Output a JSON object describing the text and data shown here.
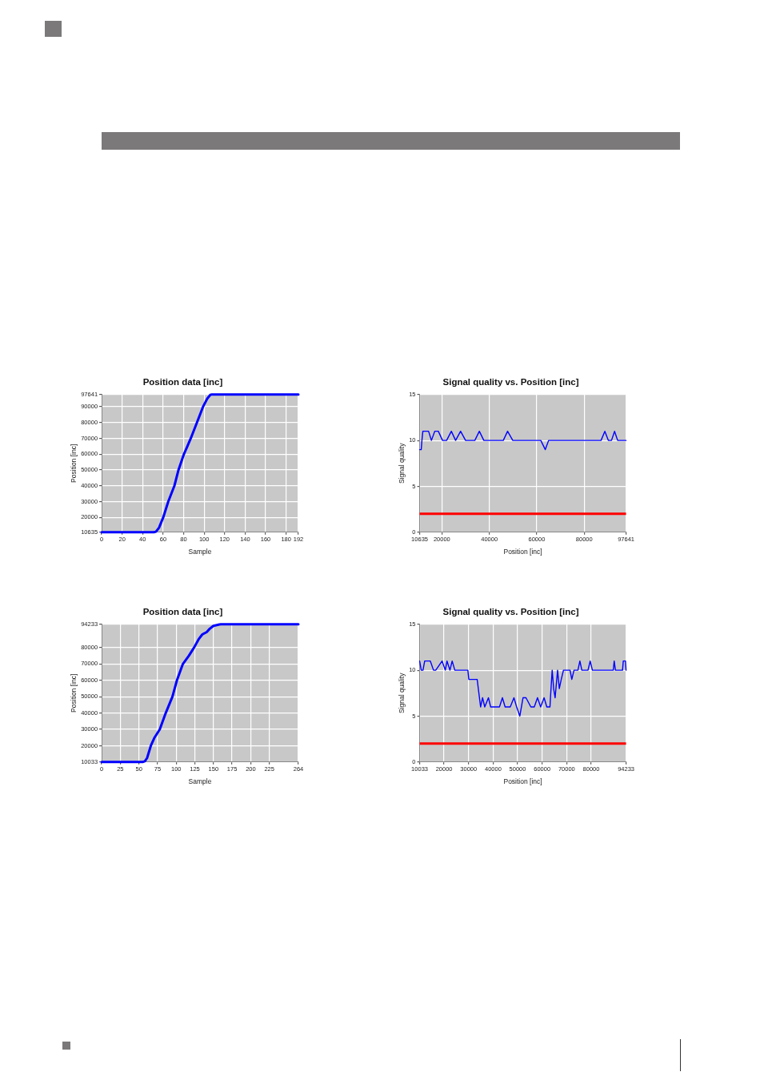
{
  "chart_data": [
    {
      "type": "line",
      "title": "Position data [inc]",
      "xlabel": "Sample",
      "ylabel": "Position [inc]",
      "xlim": [
        0,
        192
      ],
      "xticks": [
        0,
        20,
        40,
        60,
        80,
        100,
        120,
        140,
        160,
        180,
        192
      ],
      "ylim": [
        10635,
        97641
      ],
      "yticks": [
        10635,
        20000,
        30000,
        40000,
        50000,
        60000,
        70000,
        80000,
        90000,
        97641
      ],
      "grid": true,
      "marker": "none",
      "line_style": "solid",
      "x": [
        0,
        51,
        53,
        56,
        60,
        65,
        71,
        75,
        80,
        83,
        87,
        93,
        99,
        103,
        106,
        107,
        192
      ],
      "series": [
        {
          "color": "#0000ff",
          "values": [
            10635,
            10635,
            11000,
            13500,
            19800,
            30000,
            40000,
            50000,
            59500,
            64000,
            70000,
            80000,
            90000,
            95000,
            97400,
            97641,
            97641
          ]
        }
      ]
    },
    {
      "type": "line",
      "title": "Signal quality vs. Position [inc]",
      "xlabel": "Position [inc]",
      "ylabel": "Signal quality",
      "xlim": [
        10635,
        97641
      ],
      "xticks": [
        10635,
        20000,
        40000,
        60000,
        80000,
        97641
      ],
      "ylim": [
        0,
        15
      ],
      "yticks": [
        0,
        5,
        10,
        15
      ],
      "grid": true,
      "marker": "none",
      "line_style": "solid",
      "ref_lines": [
        {
          "axis": "y",
          "value": 2,
          "color": "#ff0000"
        }
      ],
      "x": [
        10635,
        11300,
        11600,
        12000,
        14400,
        15600,
        17000,
        18500,
        20300,
        22000,
        24000,
        25800,
        27900,
        30000,
        33900,
        35800,
        37700,
        45900,
        47700,
        49900,
        61700,
        63600,
        65000,
        87100,
        88700,
        90200,
        91500,
        92800,
        94100,
        97641
      ],
      "series": [
        {
          "color": "#0000ff",
          "values": [
            9,
            9,
            10,
            11,
            11,
            10,
            11,
            11,
            10,
            10,
            11,
            10,
            11,
            10,
            10,
            11,
            10,
            10,
            11,
            10,
            10,
            9,
            10,
            10,
            11,
            10,
            10,
            11,
            10,
            10
          ]
        }
      ]
    },
    {
      "type": "line",
      "title": "Position data [inc]",
      "xlabel": "Sample",
      "ylabel": "Position [inc]",
      "xlim": [
        0,
        264
      ],
      "xticks": [
        0,
        25,
        50,
        75,
        100,
        125,
        150,
        175,
        200,
        225,
        264
      ],
      "ylim": [
        10033,
        94233
      ],
      "yticks": [
        10033,
        20000,
        30000,
        40000,
        50000,
        60000,
        70000,
        80000,
        94233
      ],
      "grid": true,
      "marker": "none",
      "line_style": "solid",
      "x": [
        0,
        55,
        58,
        61,
        66,
        71,
        78,
        86,
        95,
        101,
        109,
        117,
        124,
        130,
        135,
        141,
        145,
        150,
        158,
        160,
        264
      ],
      "series": [
        {
          "color": "#0000ff",
          "values": [
            10033,
            10033,
            10500,
            12500,
            20000,
            25000,
            30000,
            40000,
            50000,
            60000,
            70000,
            75000,
            80000,
            85000,
            88000,
            89500,
            91500,
            93300,
            94100,
            94233,
            94233
          ]
        }
      ]
    },
    {
      "type": "line",
      "title": "Signal quality vs. Position [inc]",
      "xlabel": "Position [inc]",
      "ylabel": "Signal quality",
      "xlim": [
        10033,
        94233
      ],
      "xticks": [
        10033,
        20000,
        30000,
        40000,
        50000,
        60000,
        70000,
        80000,
        94233
      ],
      "ylim": [
        0,
        15
      ],
      "yticks": [
        0,
        5,
        10,
        15
      ],
      "grid": true,
      "marker": "none",
      "line_style": "solid",
      "ref_lines": [
        {
          "axis": "y",
          "value": 2,
          "color": "#ff0000"
        }
      ],
      "x": [
        10033,
        10700,
        11400,
        12100,
        14400,
        15700,
        16600,
        19200,
        20500,
        21200,
        22400,
        23300,
        24400,
        29700,
        30100,
        33500,
        34900,
        35700,
        36600,
        38100,
        39000,
        42600,
        43800,
        44900,
        47000,
        48500,
        49600,
        50900,
        52200,
        53400,
        55400,
        56800,
        58100,
        59400,
        60800,
        61900,
        63200,
        63400,
        64100,
        64700,
        65300,
        66300,
        67000,
        67800,
        68700,
        71400,
        72100,
        73000,
        74600,
        75400,
        76200,
        78700,
        79600,
        80500,
        89000,
        89400,
        89900,
        92800,
        93100,
        94000,
        94233
      ],
      "series": [
        {
          "color": "#0000ff",
          "values": [
            11,
            10,
            10,
            11,
            11,
            10,
            10,
            11,
            10,
            11,
            10,
            11,
            10,
            10,
            9,
            9,
            6,
            7,
            6,
            7,
            6,
            6,
            7,
            6,
            6,
            7,
            6,
            5,
            7,
            7,
            6,
            6,
            7,
            6,
            7,
            6,
            6,
            7,
            10,
            8,
            7,
            10,
            8,
            9,
            10,
            10,
            9,
            10,
            10,
            11,
            10,
            10,
            11,
            10,
            10,
            11,
            10,
            10,
            11,
            11,
            10
          ]
        }
      ]
    }
  ]
}
